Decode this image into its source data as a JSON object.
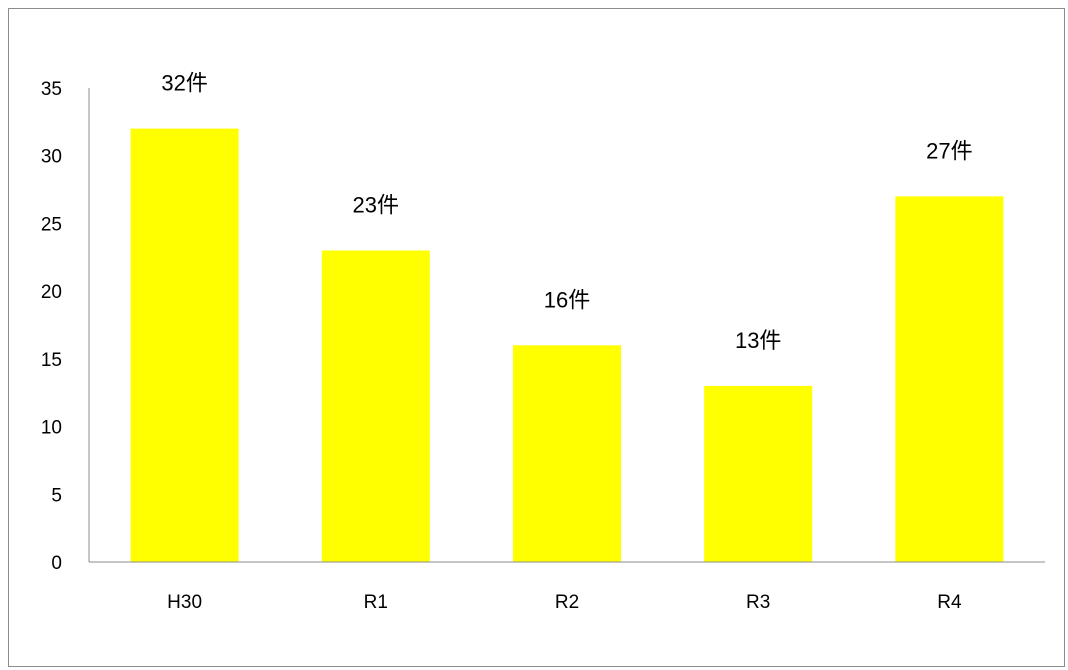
{
  "chart_data": {
    "type": "bar",
    "title": "",
    "xlabel": "",
    "ylabel": "",
    "categories": [
      "H30",
      "R1",
      "R2",
      "R3",
      "R4"
    ],
    "values": [
      32,
      23,
      16,
      13,
      27
    ],
    "data_labels": [
      "32件",
      "23件",
      "16件",
      "13件",
      "27件"
    ],
    "y_ticks": [
      "0",
      "5",
      "10",
      "15",
      "20",
      "25",
      "30",
      "35"
    ],
    "y_tick_values": [
      0,
      5,
      10,
      15,
      20,
      25,
      30,
      35
    ],
    "ylim": [
      0,
      35
    ],
    "grid": false,
    "legend": "none",
    "colors": {
      "bar": "#FFFF00",
      "axis": "#8c8c8c",
      "frame": "#8c8c8c"
    }
  }
}
